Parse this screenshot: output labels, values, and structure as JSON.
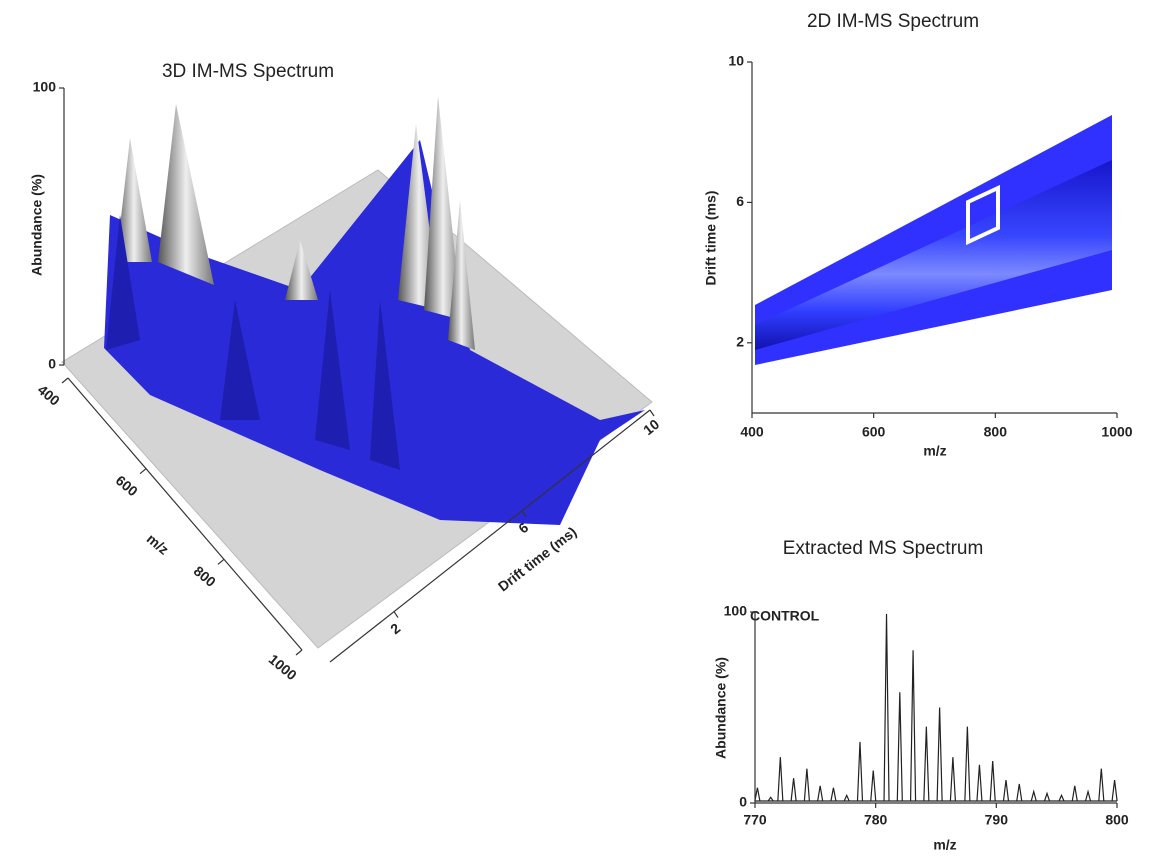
{
  "chart_data": [
    {
      "type": "surface3d",
      "title": "3D IM-MS Spectrum",
      "xlabel": "m/z",
      "xlim": [
        400,
        1000
      ],
      "xticks": [
        400,
        600,
        800,
        1000
      ],
      "ylabel": "Drift time (ms)",
      "ylim": [
        0,
        10
      ],
      "yticks": [
        2,
        6,
        10
      ],
      "zlabel": "Abundance (%)",
      "zlim": [
        0,
        100
      ],
      "zticks": [
        0,
        100
      ]
    },
    {
      "type": "heatmap",
      "title": "2D IM-MS Spectrum",
      "xlabel": "m/z",
      "xlim": [
        400,
        1000
      ],
      "xticks": [
        400,
        600,
        800,
        1000
      ],
      "ylabel": "Drift time (ms)",
      "ylim": [
        0,
        10
      ],
      "yticks": [
        2,
        6,
        10
      ],
      "color": "#1a1aff"
    },
    {
      "type": "spectrum",
      "title": "Extracted MS Spectrum",
      "annotation": "CONTROL",
      "xlabel": "m/z",
      "xlim": [
        770,
        800
      ],
      "xticks": [
        770,
        780,
        790,
        800
      ],
      "ylabel": "Abundance (%)",
      "ylim": [
        0,
        100
      ],
      "yticks": [
        0,
        100
      ],
      "color": "#222222",
      "x": [
        770.2,
        771.3,
        772.1,
        773.2,
        774.3,
        775.4,
        776.5,
        777.6,
        778.7,
        779.8,
        780.9,
        782.0,
        783.1,
        784.2,
        785.3,
        786.4,
        787.6,
        788.6,
        789.7,
        790.8,
        791.9,
        793.1,
        794.2,
        795.4,
        796.5,
        797.6,
        798.7,
        799.8
      ],
      "values": [
        8,
        3,
        24,
        13,
        18,
        9,
        8,
        4,
        32,
        17,
        99,
        58,
        80,
        40,
        50,
        24,
        40,
        20,
        22,
        12,
        10,
        6,
        5,
        4,
        9,
        6,
        18,
        12
      ]
    }
  ]
}
